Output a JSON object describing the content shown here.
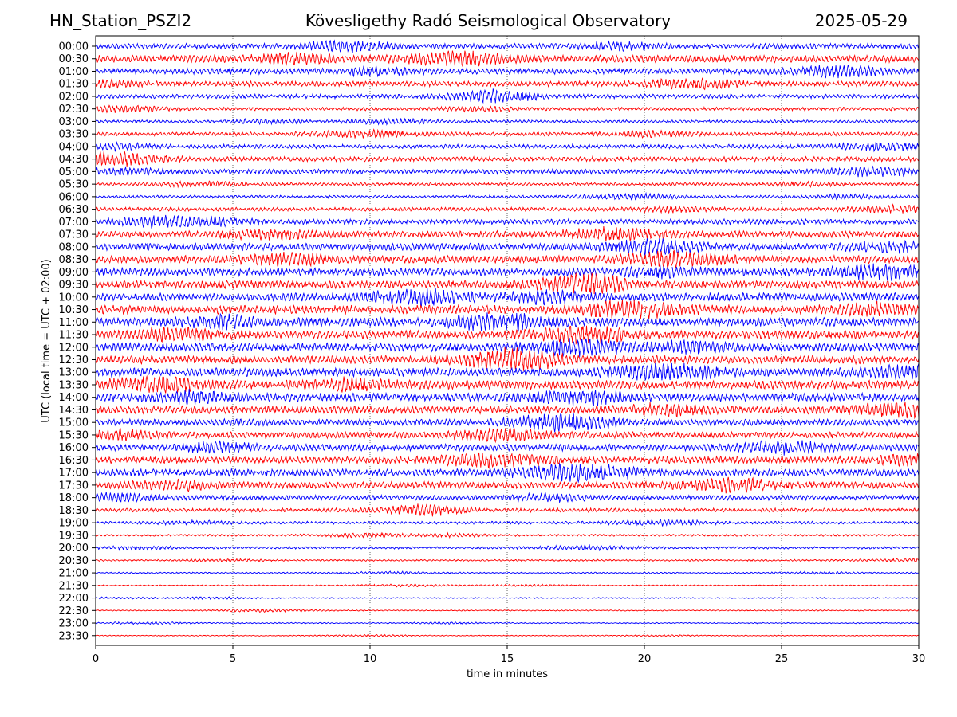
{
  "header": {
    "station": "HN_Station_PSZI2",
    "observatory": "Kövesligethy Radó Seismological Observatory",
    "date": "2025-05-29"
  },
  "chart_data": {
    "type": "line",
    "subtype": "helicorder",
    "xlabel": "time in minutes",
    "ylabel": "UTC (local time = UTC + 02:00)",
    "xlim": [
      0,
      30
    ],
    "x_ticks": [
      "0",
      "5",
      "10",
      "15",
      "20",
      "25",
      "30"
    ],
    "grid": "vertical dotted lines at 5-minute intervals",
    "colors": {
      "even_rows": "#0000ff",
      "odd_rows": "#ff0000"
    },
    "rows": [
      {
        "label": "00:00",
        "amplitude": 0.55
      },
      {
        "label": "00:30",
        "amplitude": 0.75
      },
      {
        "label": "01:00",
        "amplitude": 0.6
      },
      {
        "label": "01:30",
        "amplitude": 0.55
      },
      {
        "label": "02:00",
        "amplitude": 0.45
      },
      {
        "label": "02:30",
        "amplitude": 0.35
      },
      {
        "label": "03:00",
        "amplitude": 0.3
      },
      {
        "label": "03:30",
        "amplitude": 0.4
      },
      {
        "label": "04:00",
        "amplitude": 0.45
      },
      {
        "label": "04:30",
        "amplitude": 0.5
      },
      {
        "label": "05:00",
        "amplitude": 0.5
      },
      {
        "label": "05:30",
        "amplitude": 0.3
      },
      {
        "label": "06:00",
        "amplitude": 0.3
      },
      {
        "label": "06:30",
        "amplitude": 0.4
      },
      {
        "label": "07:00",
        "amplitude": 0.55
      },
      {
        "label": "07:30",
        "amplitude": 0.7
      },
      {
        "label": "08:00",
        "amplitude": 0.75
      },
      {
        "label": "08:30",
        "amplitude": 0.8
      },
      {
        "label": "09:00",
        "amplitude": 0.8
      },
      {
        "label": "09:30",
        "amplitude": 0.8
      },
      {
        "label": "10:00",
        "amplitude": 0.85
      },
      {
        "label": "10:30",
        "amplitude": 0.9
      },
      {
        "label": "11:00",
        "amplitude": 0.9
      },
      {
        "label": "11:30",
        "amplitude": 0.85
      },
      {
        "label": "12:00",
        "amplitude": 0.85
      },
      {
        "label": "12:30",
        "amplitude": 0.85
      },
      {
        "label": "13:00",
        "amplitude": 0.9
      },
      {
        "label": "13:30",
        "amplitude": 0.9
      },
      {
        "label": "14:00",
        "amplitude": 0.85
      },
      {
        "label": "14:30",
        "amplitude": 0.8
      },
      {
        "label": "15:00",
        "amplitude": 0.7
      },
      {
        "label": "15:30",
        "amplitude": 0.65
      },
      {
        "label": "16:00",
        "amplitude": 0.7
      },
      {
        "label": "16:30",
        "amplitude": 0.75
      },
      {
        "label": "17:00",
        "amplitude": 0.75
      },
      {
        "label": "17:30",
        "amplitude": 0.7
      },
      {
        "label": "18:00",
        "amplitude": 0.5
      },
      {
        "label": "18:30",
        "amplitude": 0.4
      },
      {
        "label": "19:00",
        "amplitude": 0.3
      },
      {
        "label": "19:30",
        "amplitude": 0.22
      },
      {
        "label": "20:00",
        "amplitude": 0.25
      },
      {
        "label": "20:30",
        "amplitude": 0.18
      },
      {
        "label": "21:00",
        "amplitude": 0.15
      },
      {
        "label": "21:30",
        "amplitude": 0.13
      },
      {
        "label": "22:00",
        "amplitude": 0.12
      },
      {
        "label": "22:30",
        "amplitude": 0.12
      },
      {
        "label": "23:00",
        "amplitude": 0.12
      },
      {
        "label": "23:30",
        "amplitude": 0.1
      }
    ]
  }
}
